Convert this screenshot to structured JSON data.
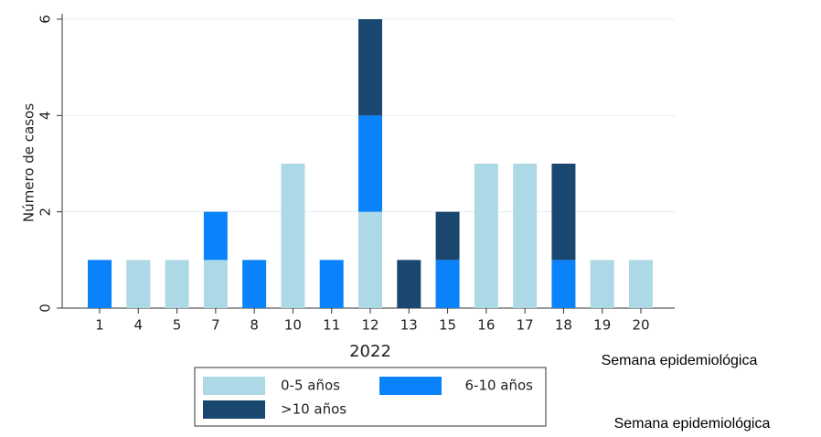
{
  "chart_data": {
    "type": "bar",
    "stacked": true,
    "y_label": "Número de casos",
    "x_label": "2022",
    "notes": [
      "Semana epidemiológica",
      "Semana epidemiológica"
    ],
    "categories": [
      "1",
      "4",
      "5",
      "7",
      "8",
      "10",
      "11",
      "12",
      "13",
      "15",
      "16",
      "17",
      "18",
      "19",
      "20"
    ],
    "series": [
      {
        "name": "0-5 años",
        "color": "#add8e6",
        "values": [
          0,
          1,
          1,
          1,
          0,
          3,
          0,
          2,
          0,
          0,
          3,
          3,
          0,
          1,
          1
        ]
      },
      {
        "name": "6-10 años",
        "color": "#0a82fa",
        "values": [
          1,
          0,
          0,
          1,
          1,
          0,
          1,
          2,
          0,
          1,
          0,
          0,
          1,
          0,
          0
        ]
      },
      {
        "name": ">10 años",
        "color": "#1a476f",
        "values": [
          0,
          0,
          0,
          0,
          0,
          0,
          0,
          2,
          1,
          1,
          0,
          0,
          2,
          0,
          0
        ]
      }
    ],
    "ylim": [
      0,
      6
    ],
    "yticks": [
      0,
      2,
      4,
      6
    ],
    "grid": true
  }
}
